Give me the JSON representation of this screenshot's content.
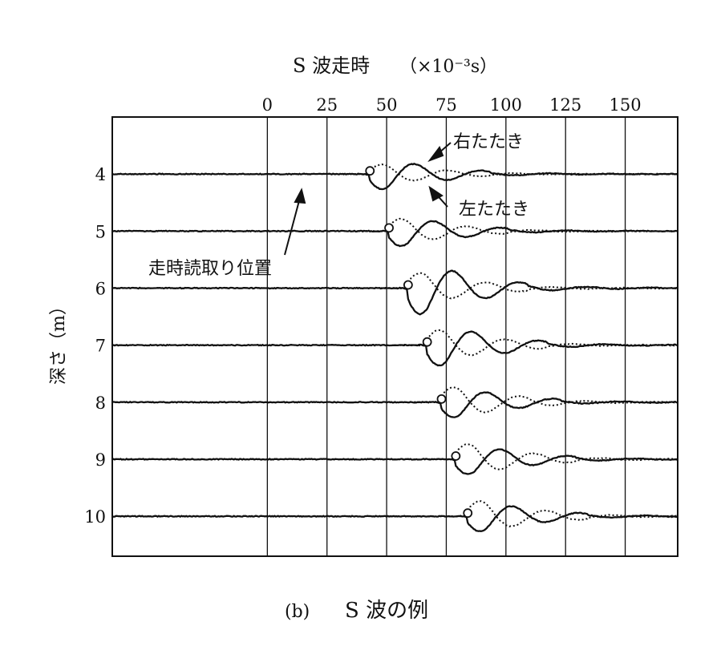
{
  "chart_data": {
    "type": "line",
    "title": "S 波走時",
    "unit_label": "（×10⁻³s）",
    "caption_letter": "(b)",
    "caption_text": "S 波の例",
    "ylabel": "深さ（m）",
    "xlim": [
      -65,
      172
    ],
    "x_ticks": [
      "0",
      "25",
      "50",
      "75",
      "100",
      "125",
      "150"
    ],
    "x_tick_values": [
      0,
      25,
      50,
      75,
      100,
      125,
      150
    ],
    "ylim": [
      3.0,
      10.7
    ],
    "y_ticks": [
      "4",
      "5",
      "6",
      "7",
      "8",
      "9",
      "10"
    ],
    "y_tick_values": [
      4,
      5,
      6,
      7,
      8,
      9,
      10
    ],
    "grid": "vertical",
    "legend": {
      "solid": "右たたき",
      "dotted": "左たたき",
      "marker": "走時読取り位置"
    },
    "series": [
      {
        "name": "右たたき",
        "style": "solid",
        "color": "#111111"
      },
      {
        "name": "左たたき",
        "style": "dotted",
        "color": "#111111"
      }
    ],
    "traces": [
      {
        "depth": 4,
        "pick": 43,
        "solid_amp": 0.55,
        "dotted_amp": 0.35
      },
      {
        "depth": 5,
        "pick": 51,
        "solid_amp": 0.55,
        "dotted_amp": 0.45
      },
      {
        "depth": 6,
        "pick": 59,
        "solid_amp": 0.95,
        "dotted_amp": 0.55
      },
      {
        "depth": 7,
        "pick": 67,
        "solid_amp": 0.75,
        "dotted_amp": 0.55
      },
      {
        "depth": 8,
        "pick": 73,
        "solid_amp": 0.55,
        "dotted_amp": 0.55
      },
      {
        "depth": 9,
        "pick": 79,
        "solid_amp": 0.55,
        "dotted_amp": 0.55
      },
      {
        "depth": 10,
        "pick": 84,
        "solid_amp": 0.55,
        "dotted_amp": 0.55
      }
    ],
    "annotations": [
      {
        "text": "右たたき"
      },
      {
        "text": "左たたき"
      },
      {
        "text": "走時読取り位置"
      }
    ]
  }
}
